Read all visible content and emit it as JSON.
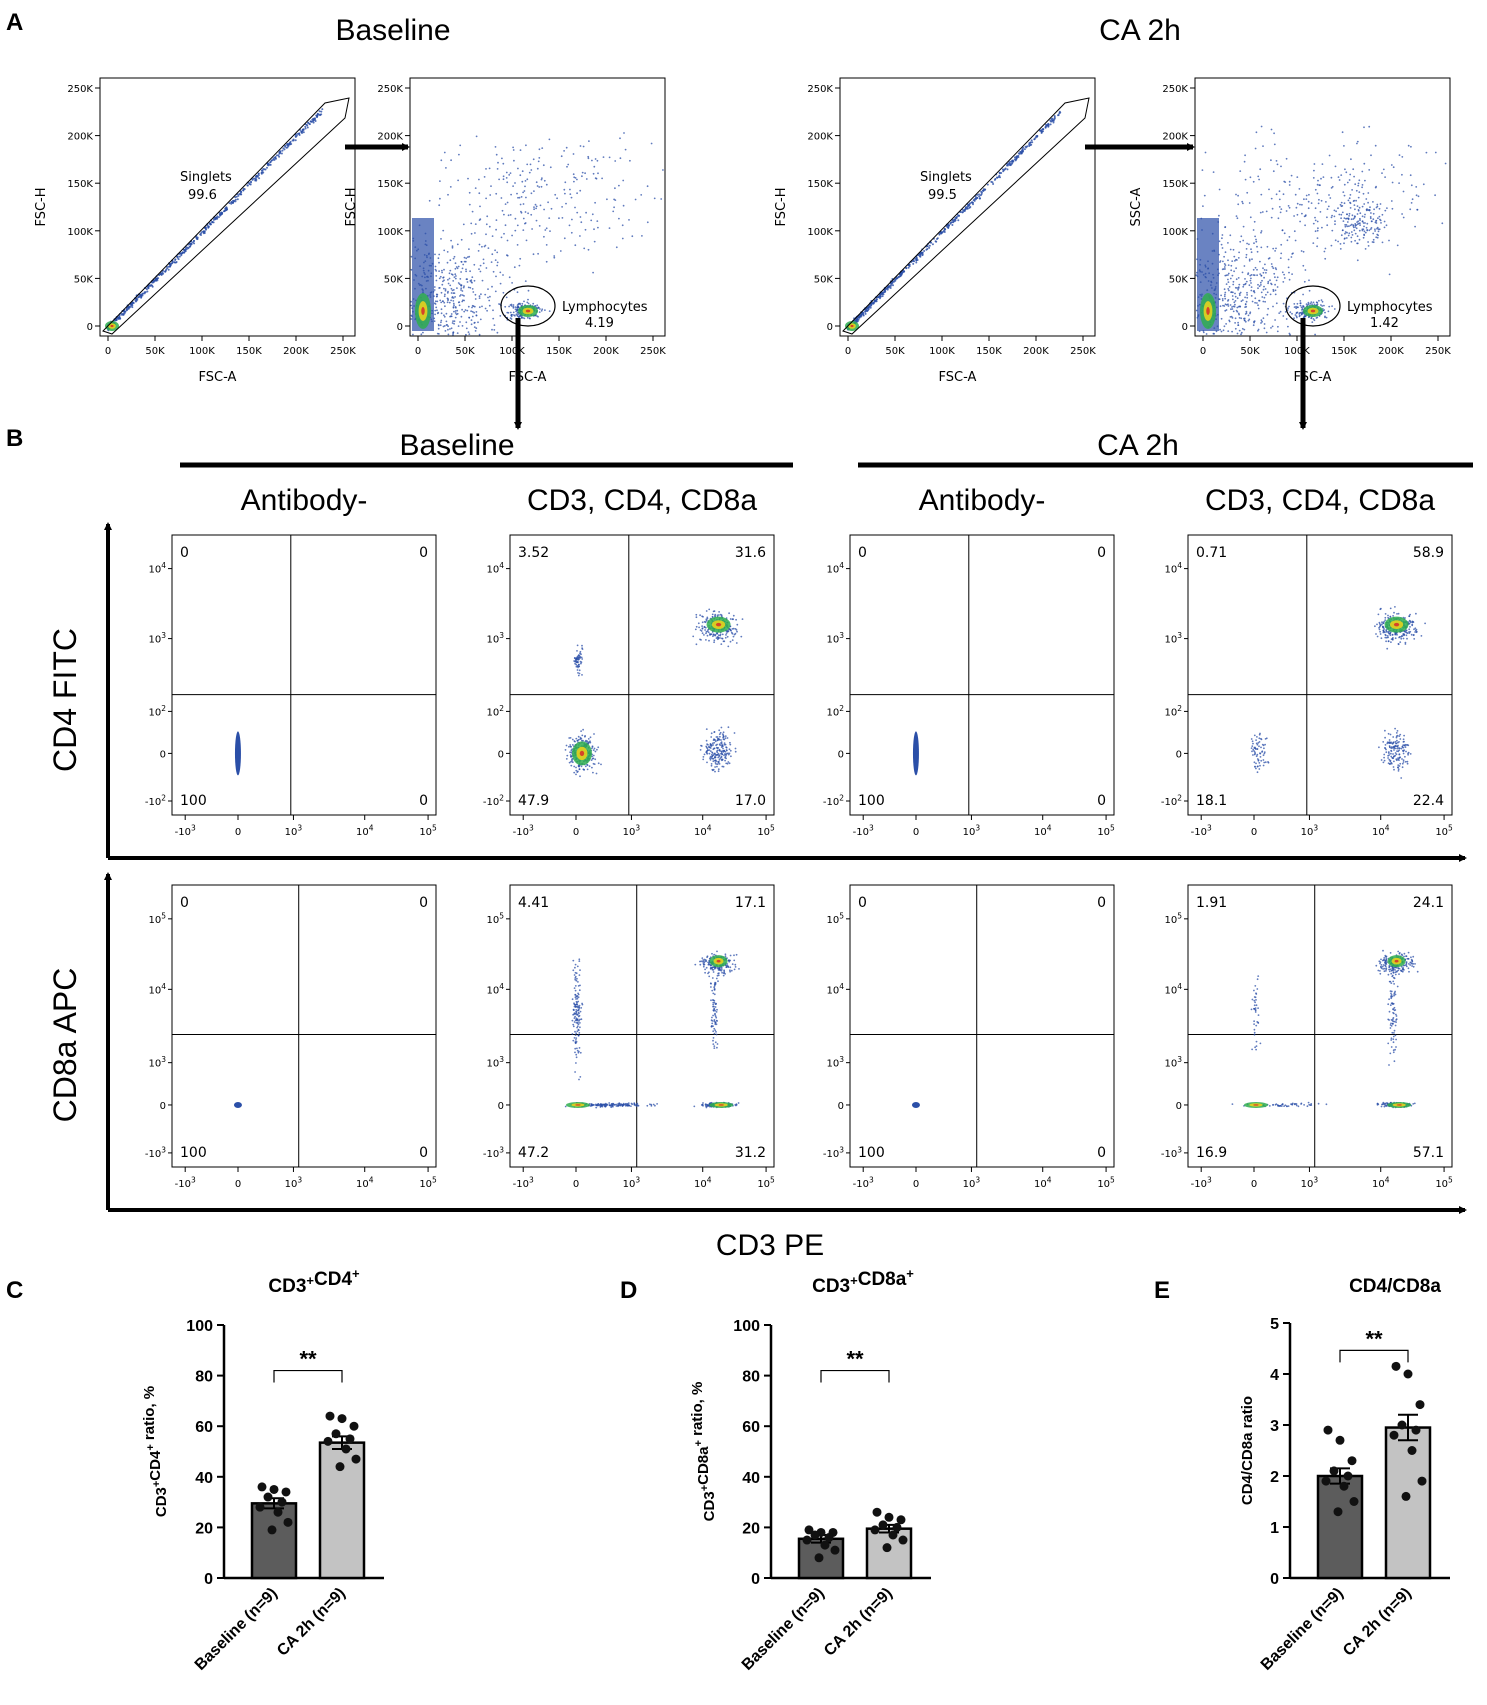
{
  "panel_labels": {
    "a": "A",
    "b": "B",
    "c": "C",
    "d": "D",
    "e": "E"
  },
  "colors": {
    "dense": "#2b4fa8",
    "green": "#2fae4f",
    "yellow": "#e6d21e",
    "red": "#d6342a",
    "bar_dark": "#5c5c5c",
    "bar_light": "#c3c3c3",
    "dot": "#111111"
  },
  "panel_a": {
    "groups": [
      {
        "title": "Baseline",
        "singlets": {
          "xlabel": "FSC-A",
          "ylabel": "FSC-H",
          "gate_name": "Singlets",
          "gate_value": "99.6",
          "x_ticks": [
            "0",
            "50K",
            "100K",
            "150K",
            "200K",
            "250K"
          ],
          "y_ticks": [
            "0",
            "50K",
            "100K",
            "150K",
            "200K",
            "250K"
          ]
        },
        "scatter": {
          "xlabel": "FSC-A",
          "ylabel": "FSC-H",
          "gate_name": "Lymphocytes",
          "gate_value": "4.19",
          "x_ticks": [
            "0",
            "50K",
            "100K",
            "150K",
            "200K",
            "250K"
          ],
          "y_ticks": [
            "0",
            "50K",
            "100K",
            "150K",
            "200K",
            "250K"
          ]
        }
      },
      {
        "title": "CA 2h",
        "singlets": {
          "xlabel": "FSC-A",
          "ylabel": "FSC-H",
          "gate_name": "Singlets",
          "gate_value": "99.5",
          "x_ticks": [
            "0",
            "50K",
            "100K",
            "150K",
            "200K",
            "250K"
          ],
          "y_ticks": [
            "0",
            "50K",
            "100K",
            "150K",
            "200K",
            "250K"
          ]
        },
        "scatter": {
          "xlabel": "FSC-A",
          "ylabel": "SSC-A",
          "gate_name": "Lymphocytes",
          "gate_value": "1.42",
          "x_ticks": [
            "0",
            "50K",
            "100K",
            "150K",
            "200K",
            "250K"
          ],
          "y_ticks": [
            "0",
            "50K",
            "100K",
            "150K",
            "200K",
            "250K"
          ]
        }
      }
    ]
  },
  "panel_b": {
    "group_titles": [
      "Baseline",
      "CA 2h"
    ],
    "column_titles": [
      "Antibody-",
      "CD3, CD4, CD8a",
      "Antibody-",
      "CD3, CD4, CD8a"
    ],
    "x_axis_label": "CD3 PE",
    "row_labels": [
      "CD4 FITC",
      "CD8a APC"
    ],
    "x_ticks": [
      [
        "-10",
        "3"
      ],
      [
        "0",
        ""
      ],
      [
        "10",
        "3"
      ],
      [
        "10",
        "4"
      ],
      [
        "10",
        "5"
      ]
    ],
    "row_y_ticks": [
      [
        [
          "10",
          "4"
        ],
        [
          "10",
          "3"
        ],
        [
          "10",
          "2"
        ],
        [
          "0",
          ""
        ],
        [
          "-10",
          "2"
        ]
      ],
      [
        [
          "10",
          "5"
        ],
        [
          "10",
          "4"
        ],
        [
          "10",
          "3"
        ],
        [
          "0",
          ""
        ],
        [
          "-10",
          "3"
        ]
      ]
    ],
    "quadrants": [
      [
        [
          "0",
          "0",
          "100",
          "0"
        ],
        [
          "3.52",
          "31.6",
          "47.9",
          "17.0"
        ],
        [
          "0",
          "0",
          "100",
          "0"
        ],
        [
          "0.71",
          "58.9",
          "18.1",
          "22.4"
        ]
      ],
      [
        [
          "0",
          "0",
          "100",
          "0"
        ],
        [
          "4.41",
          "17.1",
          "47.2",
          "31.2"
        ],
        [
          "0",
          "0",
          "100",
          "0"
        ],
        [
          "1.91",
          "24.1",
          "16.9",
          "57.1"
        ]
      ]
    ]
  },
  "chart_data": [
    {
      "id": "C",
      "type": "bar",
      "title": "CD3+CD4+",
      "ylabel": "CD3+CD4+ ratio, %",
      "categories": [
        "Baseline (n=9)",
        "CA 2h (n=9)"
      ],
      "values": [
        29.5,
        53.5
      ],
      "sem": [
        2.0,
        2.5
      ],
      "points": [
        [
          36,
          35,
          34,
          32,
          30,
          28,
          26,
          22,
          19
        ],
        [
          64,
          63,
          60,
          57,
          55,
          54,
          51,
          47,
          44
        ]
      ],
      "ylim": [
        0,
        100
      ],
      "yticks": [
        "0",
        "20",
        "40",
        "60",
        "80",
        "100"
      ],
      "significance": "**"
    },
    {
      "id": "D",
      "type": "bar",
      "title": "CD3+CD8a+",
      "ylabel": "CD3+CD8a+ ratio, %",
      "categories": [
        "Baseline (n=9)",
        "CA 2h (n=9)"
      ],
      "values": [
        15.5,
        19.5
      ],
      "sem": [
        1.5,
        1.5
      ],
      "points": [
        [
          19,
          18,
          18,
          17,
          16,
          15,
          13,
          11,
          8
        ],
        [
          26,
          24,
          23,
          21,
          20,
          19,
          17,
          15,
          12
        ]
      ],
      "ylim": [
        0,
        100
      ],
      "yticks": [
        "0",
        "20",
        "40",
        "60",
        "80",
        "100"
      ],
      "significance": "**"
    },
    {
      "id": "E",
      "type": "bar",
      "title": "CD4/CD8a",
      "ylabel": "CD4/CD8a ratio",
      "categories": [
        "Baseline (n=9)",
        "CA 2h (n=9)"
      ],
      "values": [
        2.0,
        2.95
      ],
      "sem": [
        0.15,
        0.25
      ],
      "points": [
        [
          2.9,
          2.7,
          2.3,
          2.1,
          2.0,
          1.9,
          1.8,
          1.5,
          1.3
        ],
        [
          4.15,
          4.0,
          3.4,
          3.0,
          2.9,
          2.8,
          2.5,
          1.9,
          1.6
        ]
      ],
      "ylim": [
        0,
        5
      ],
      "yticks": [
        "0",
        "1",
        "2",
        "3",
        "4",
        "5"
      ],
      "significance": "**"
    }
  ]
}
